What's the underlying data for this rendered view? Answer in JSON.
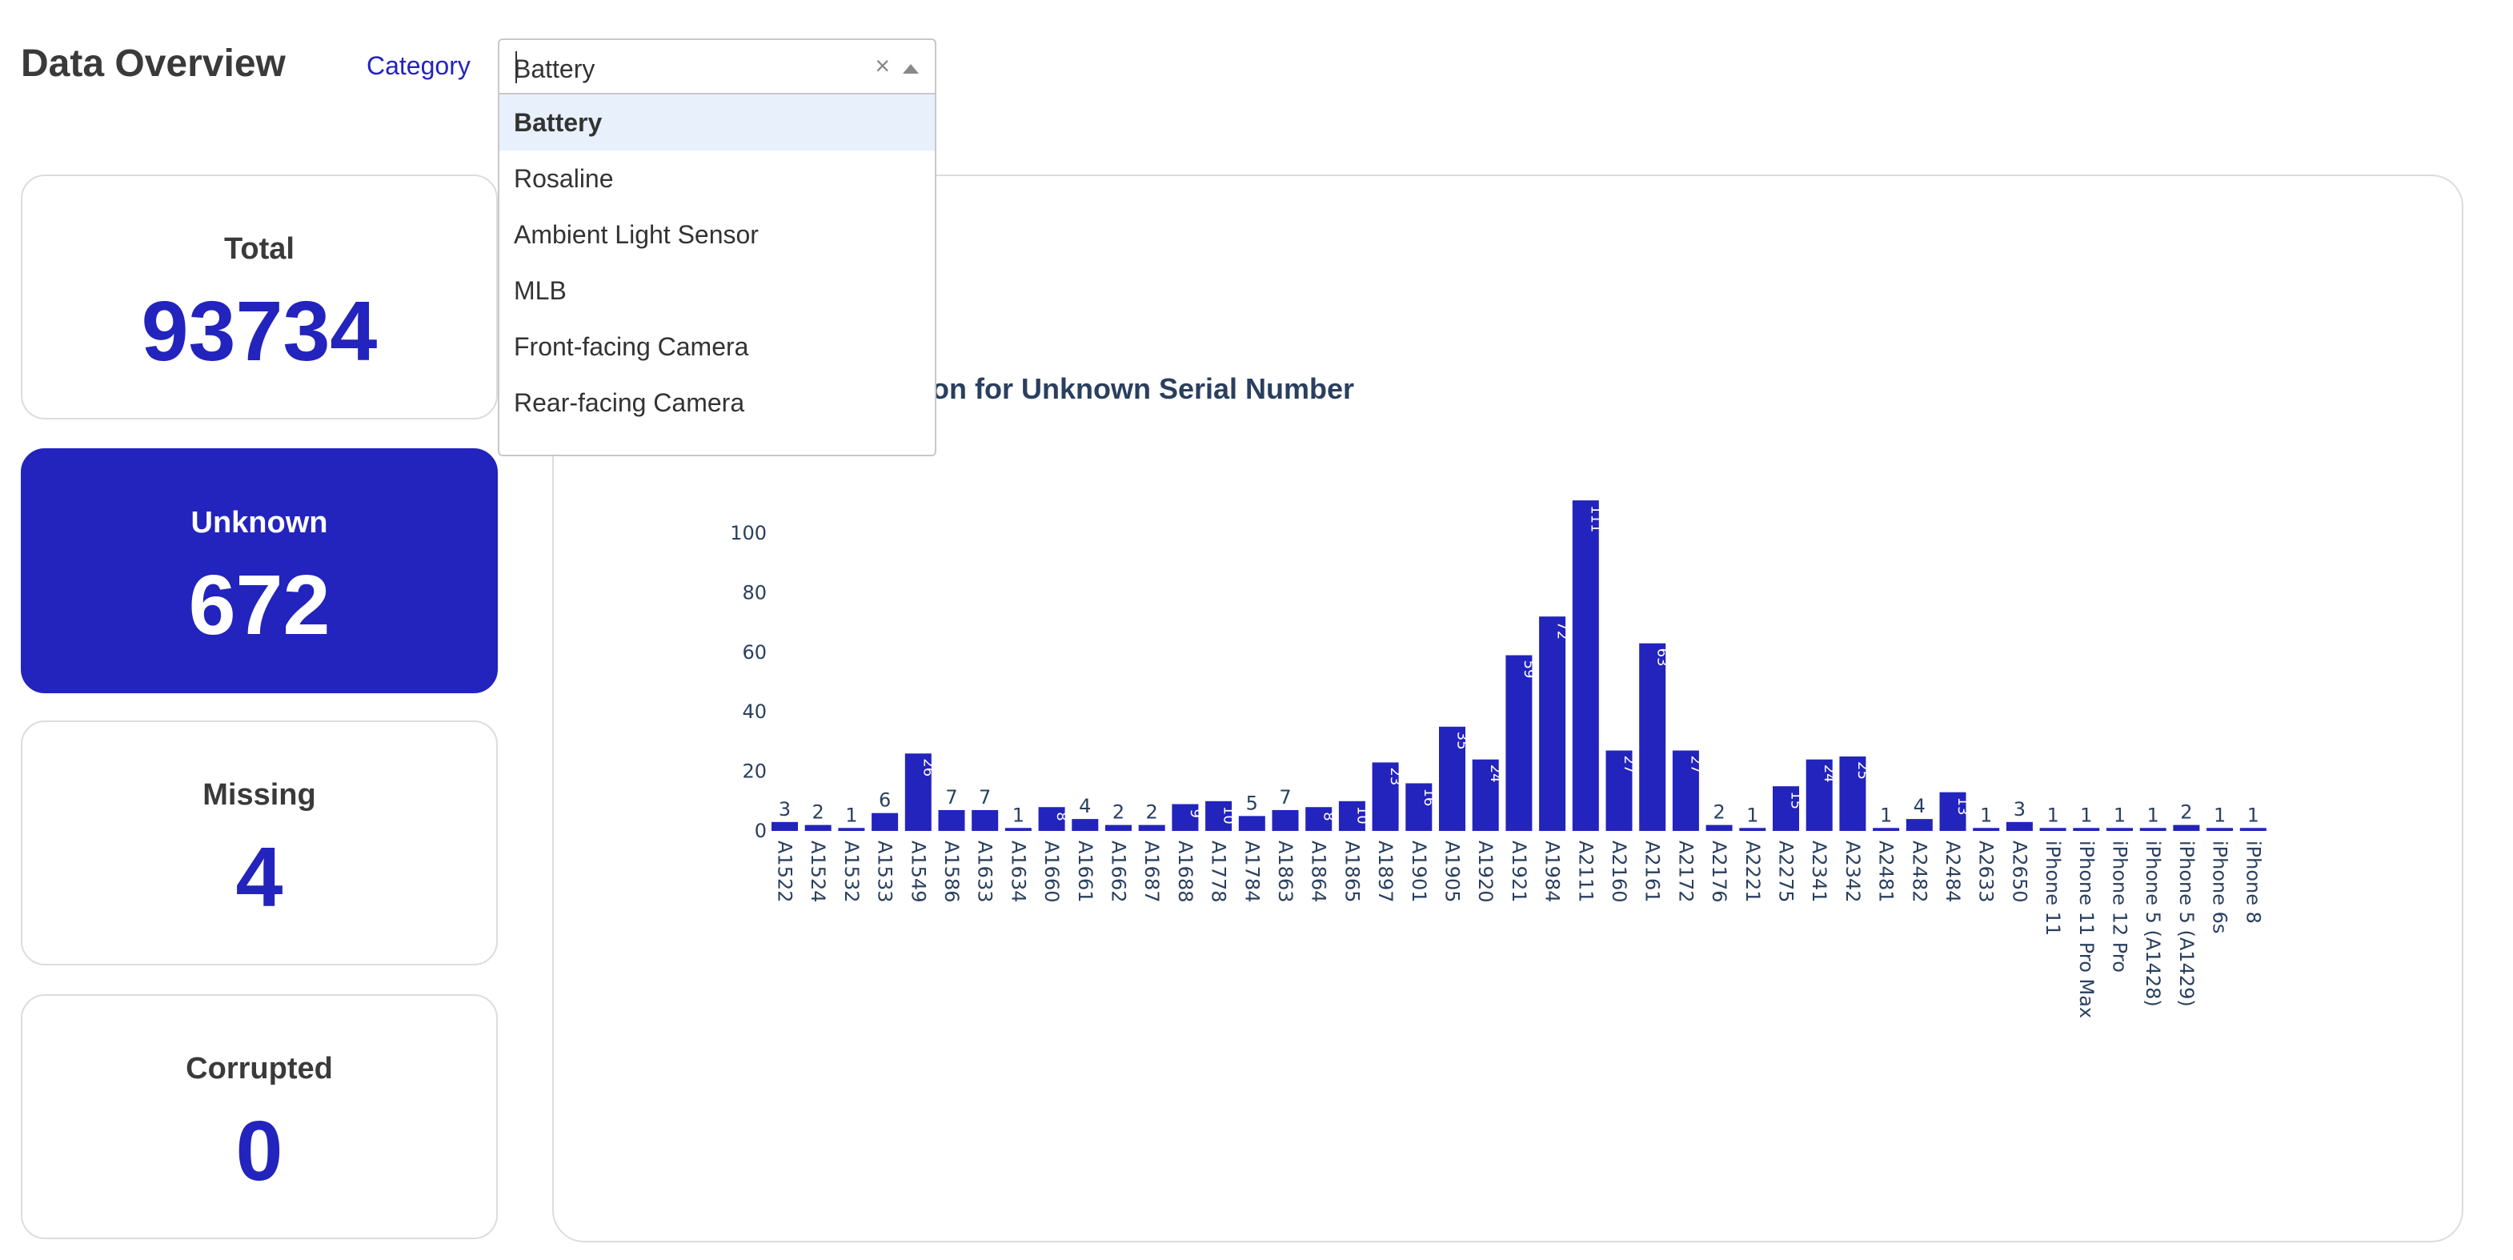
{
  "header": {
    "title": "Data Overview",
    "category_label": "Category"
  },
  "dropdown": {
    "value": "Battery",
    "clear_symbol": "×",
    "options": [
      "Battery",
      "Rosaline",
      "Ambient Light Sensor",
      "MLB",
      "Front-facing Camera",
      "Rear-facing Camera"
    ]
  },
  "cards": {
    "total": {
      "label": "Total",
      "value": "93734"
    },
    "unknown": {
      "label": "Unknown",
      "value": "672"
    },
    "missing": {
      "label": "Missing",
      "value": "4"
    },
    "corrupted": {
      "label": "Corrupted",
      "value": "0"
    }
  },
  "colors": {
    "accent": "#2323bd"
  },
  "chart_data": {
    "type": "bar",
    "title": "ution for Unknown Serial Number",
    "categories": [
      "A1522",
      "A1524",
      "A1532",
      "A1533",
      "A1549",
      "A1586",
      "A1633",
      "A1634",
      "A1660",
      "A1661",
      "A1662",
      "A1687",
      "A1688",
      "A1778",
      "A1784",
      "A1863",
      "A1864",
      "A1865",
      "A1897",
      "A1901",
      "A1905",
      "A1920",
      "A1921",
      "A1984",
      "A2111",
      "A2160",
      "A2161",
      "A2172",
      "A2176",
      "A2221",
      "A2275",
      "A2341",
      "A2342",
      "A2481",
      "A2482",
      "A2484",
      "A2633",
      "A2650",
      "iPhone 11",
      "iPhone 11 Pro Max",
      "iPhone 12 Pro",
      "iPhone 5 (A1428)",
      "iPhone 5 (A1429)",
      "iPhone 6s",
      "iPhone 8"
    ],
    "values": [
      3,
      2,
      1,
      6,
      26,
      7,
      7,
      1,
      8,
      4,
      2,
      2,
      9,
      10,
      5,
      7,
      8,
      10,
      23,
      16,
      35,
      24,
      59,
      72,
      111,
      27,
      63,
      27,
      2,
      1,
      15,
      24,
      25,
      1,
      4,
      13,
      1,
      3,
      1,
      1,
      1,
      1,
      2,
      1,
      1
    ],
    "yticks": [
      0,
      20,
      40,
      60,
      80,
      100
    ],
    "ylim": [
      0,
      117
    ],
    "xlabel": "",
    "ylabel": "",
    "grid": false
  }
}
